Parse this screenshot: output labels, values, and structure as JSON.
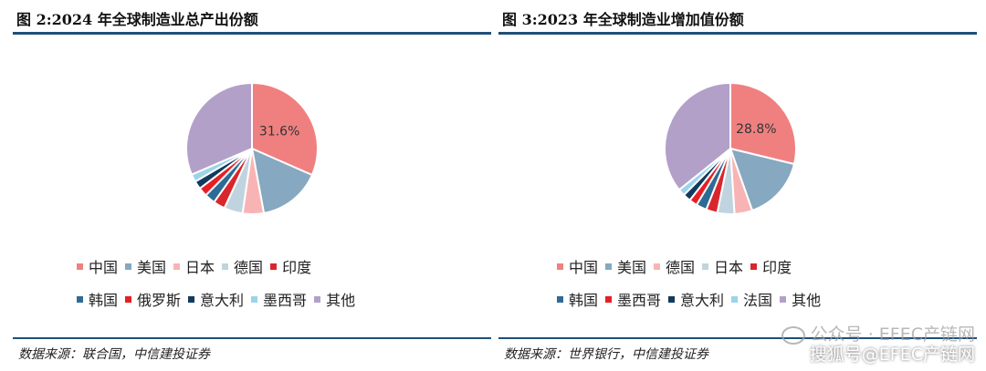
{
  "chart_data": [
    {
      "type": "pie",
      "title": "图 2:2024 年全球制造业总产出份额",
      "source": "数据来源：联合国，中信建投证券",
      "slices": [
        {
          "label": "中国",
          "value": 31.6,
          "color": "#f08080"
        },
        {
          "label": "美国",
          "value": 15.5,
          "color": "#86a8c0"
        },
        {
          "label": "日本",
          "value": 5.2,
          "color": "#f8b4b4"
        },
        {
          "label": "德国",
          "value": 4.6,
          "color": "#c0d4e0"
        },
        {
          "label": "印度",
          "value": 2.9,
          "color": "#d9262c"
        },
        {
          "label": "韩国",
          "value": 2.6,
          "color": "#2e6b94"
        },
        {
          "label": "俄罗斯",
          "value": 2.2,
          "color": "#e81e25"
        },
        {
          "label": "意大利",
          "value": 2.0,
          "color": "#123a5c"
        },
        {
          "label": "墨西哥",
          "value": 1.9,
          "color": "#9cd3ea"
        },
        {
          "label": "其他",
          "value": 31.5,
          "color": "#b3a0c8"
        }
      ],
      "data_labels": [
        {
          "slice": "中国",
          "text": "31.6%"
        }
      ],
      "legend": {
        "placement": "bottom"
      }
    },
    {
      "type": "pie",
      "title": "图 3:2023 年全球制造业增加值份额",
      "source": "数据来源：世界银行，中信建投证券",
      "slices": [
        {
          "label": "中国",
          "value": 28.8,
          "color": "#f08080"
        },
        {
          "label": "美国",
          "value": 15.8,
          "color": "#86a8c0"
        },
        {
          "label": "德国",
          "value": 4.4,
          "color": "#f8b4b4"
        },
        {
          "label": "日本",
          "value": 4.2,
          "color": "#c0d4e0"
        },
        {
          "label": "印度",
          "value": 2.8,
          "color": "#d9262c"
        },
        {
          "label": "韩国",
          "value": 2.6,
          "color": "#2e6b94"
        },
        {
          "label": "墨西哥",
          "value": 2.0,
          "color": "#e81e25"
        },
        {
          "label": "意大利",
          "value": 1.9,
          "color": "#123a5c"
        },
        {
          "label": "法国",
          "value": 1.7,
          "color": "#9cd3ea"
        },
        {
          "label": "其他",
          "value": 35.8,
          "color": "#b3a0c8"
        }
      ],
      "data_labels": [
        {
          "slice": "中国",
          "text": "28.8%"
        }
      ],
      "legend": {
        "placement": "bottom"
      }
    }
  ],
  "watermark": {
    "line1": "公众号 · EFEC产链网",
    "line2": "搜狐号@EFEC产链网"
  }
}
